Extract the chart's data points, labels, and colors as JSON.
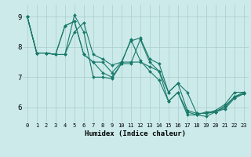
{
  "xlabel": "Humidex (Indice chaleur)",
  "bg_color": "#cceaea",
  "grid_color": "#aacccc",
  "line_color": "#1a7a6a",
  "xlim": [
    -0.5,
    23.5
  ],
  "ylim": [
    5.5,
    9.4
  ],
  "yticks": [
    6,
    7,
    8,
    9
  ],
  "xticks": [
    0,
    1,
    2,
    3,
    4,
    5,
    6,
    7,
    8,
    9,
    10,
    11,
    12,
    13,
    14,
    15,
    16,
    17,
    18,
    19,
    20,
    21,
    22,
    23
  ],
  "series": [
    [
      9.0,
      7.8,
      7.8,
      7.75,
      7.75,
      8.5,
      8.8,
      7.75,
      7.6,
      7.4,
      7.5,
      8.2,
      8.3,
      7.6,
      7.45,
      6.5,
      6.8,
      6.5,
      5.8,
      5.8,
      5.9,
      6.1,
      6.5,
      6.5
    ],
    [
      9.0,
      7.8,
      7.8,
      7.75,
      8.7,
      8.85,
      7.75,
      7.5,
      7.5,
      7.15,
      7.5,
      7.5,
      7.5,
      7.35,
      7.2,
      6.5,
      6.8,
      5.9,
      5.8,
      5.8,
      5.85,
      6.05,
      6.35,
      6.5
    ],
    [
      9.0,
      7.8,
      7.8,
      7.75,
      8.7,
      8.85,
      7.75,
      7.5,
      7.15,
      7.0,
      7.45,
      8.25,
      7.55,
      7.2,
      6.9,
      6.2,
      6.5,
      5.85,
      5.75,
      5.7,
      5.85,
      5.95,
      6.3,
      6.45
    ],
    [
      9.0,
      7.8,
      7.8,
      7.75,
      7.75,
      9.05,
      8.5,
      7.0,
      7.0,
      6.95,
      7.45,
      7.45,
      8.25,
      7.5,
      7.2,
      6.2,
      6.5,
      5.75,
      5.75,
      5.85,
      5.85,
      6.0,
      6.35,
      6.45
    ]
  ]
}
